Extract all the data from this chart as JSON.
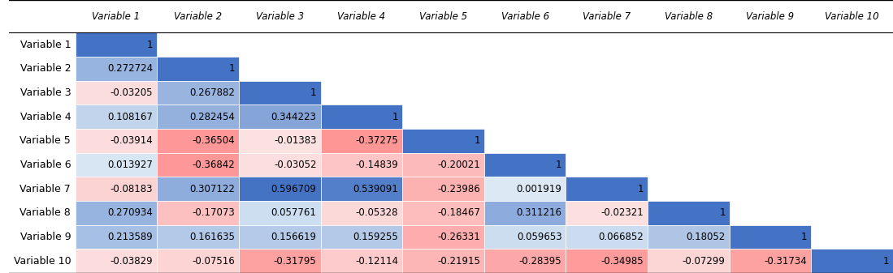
{
  "variables": [
    "Variable 1",
    "Variable 2",
    "Variable 3",
    "Variable 4",
    "Variable 5",
    "Variable 6",
    "Variable 7",
    "Variable 8",
    "Variable 9",
    "Variable 10"
  ],
  "matrix": [
    [
      1.0,
      null,
      null,
      null,
      null,
      null,
      null,
      null,
      null,
      null
    ],
    [
      0.272724,
      1.0,
      null,
      null,
      null,
      null,
      null,
      null,
      null,
      null
    ],
    [
      -0.03205,
      0.267882,
      1.0,
      null,
      null,
      null,
      null,
      null,
      null,
      null
    ],
    [
      0.108167,
      0.282454,
      0.344223,
      1.0,
      null,
      null,
      null,
      null,
      null,
      null
    ],
    [
      -0.03914,
      -0.36504,
      -0.01383,
      -0.37275,
      1.0,
      null,
      null,
      null,
      null,
      null
    ],
    [
      0.013927,
      -0.36842,
      -0.03052,
      -0.14839,
      -0.20021,
      1.0,
      null,
      null,
      null,
      null
    ],
    [
      -0.08183,
      0.307122,
      0.596709,
      0.539091,
      -0.23986,
      0.001919,
      1.0,
      null,
      null,
      null
    ],
    [
      0.270934,
      -0.17073,
      0.057761,
      -0.05328,
      -0.18467,
      0.311216,
      -0.02321,
      1.0,
      null,
      null
    ],
    [
      0.213589,
      0.161635,
      0.156619,
      0.159255,
      -0.26331,
      0.059653,
      0.066852,
      0.18052,
      1.0,
      null
    ],
    [
      -0.03829,
      -0.07516,
      -0.31795,
      -0.12114,
      -0.21915,
      -0.28395,
      -0.34985,
      -0.07299,
      -0.31734,
      1.0
    ]
  ],
  "col_header_style": "italic",
  "col_header_fontsize": 8.5,
  "row_header_fontsize": 9,
  "value_fontsize": 8.5,
  "background_color": "#ffffff",
  "header_color": "#000000",
  "positive_strong_color": "#4472C4",
  "positive_medium_color": "#9DC3E6",
  "positive_weak_color": "#dce9f5",
  "negative_strong_color": "#FF6666",
  "negative_medium_color": "#F4B8B8",
  "negative_weak_color": "#fce4e4",
  "diagonal_color": "#4472C4",
  "empty_color": "#ffffff"
}
